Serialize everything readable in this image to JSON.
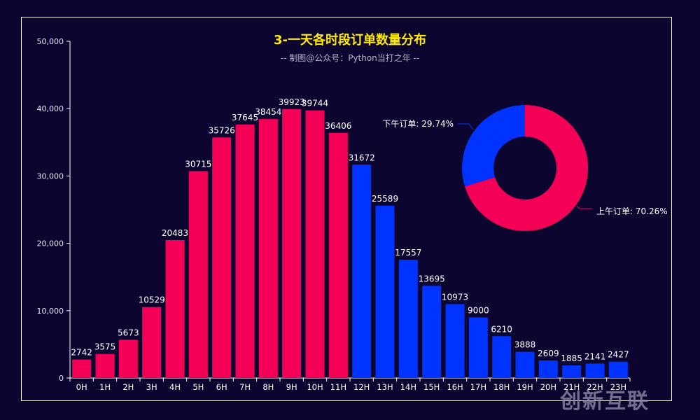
{
  "title": "3-一天各时段订单数量分布",
  "subtitle": "-- 制图@公众号：Python当打之年 --",
  "colors": {
    "background": "#0c0530",
    "am": "#f50057",
    "pm": "#0033ff",
    "title": "#ffea00",
    "text": "#ffffff",
    "axis": "#ffffff"
  },
  "watermark": "创新互联",
  "chart_data": [
    {
      "type": "bar",
      "title": "3-一天各时段订单数量分布",
      "subtitle": "-- 制图@公众号：Python当打之年 --",
      "xlabel": "",
      "ylabel": "",
      "categories": [
        "0H",
        "1H",
        "2H",
        "3H",
        "4H",
        "5H",
        "6H",
        "7H",
        "8H",
        "9H",
        "10H",
        "11H",
        "12H",
        "13H",
        "14H",
        "15H",
        "16H",
        "17H",
        "18H",
        "19H",
        "20H",
        "21H",
        "22H",
        "23H"
      ],
      "values": [
        2742,
        3575,
        5673,
        10529,
        20483,
        30715,
        35726,
        37645,
        38454,
        39923,
        39744,
        36406,
        31672,
        25589,
        17557,
        13695,
        10973,
        9000,
        6210,
        3888,
        2609,
        1885,
        2141,
        2427
      ],
      "bar_colors_rule": "0H-11H #f50057 (morning), 12H-23H #0033ff (afternoon)",
      "yticks": [
        "0",
        "10,000",
        "20,000",
        "30,000",
        "40,000",
        "50,000"
      ],
      "ylim": [
        0,
        50000
      ],
      "grid": false,
      "data_labels": true
    },
    {
      "type": "pie",
      "subtype": "donut",
      "labels": [
        "上午订单",
        "下午订单"
      ],
      "values": [
        70.26,
        29.74
      ],
      "label_texts": [
        "上午订单: 70.26%",
        "下午订单: 29.74%"
      ],
      "colors": [
        "#f50057",
        "#0033ff"
      ]
    }
  ]
}
